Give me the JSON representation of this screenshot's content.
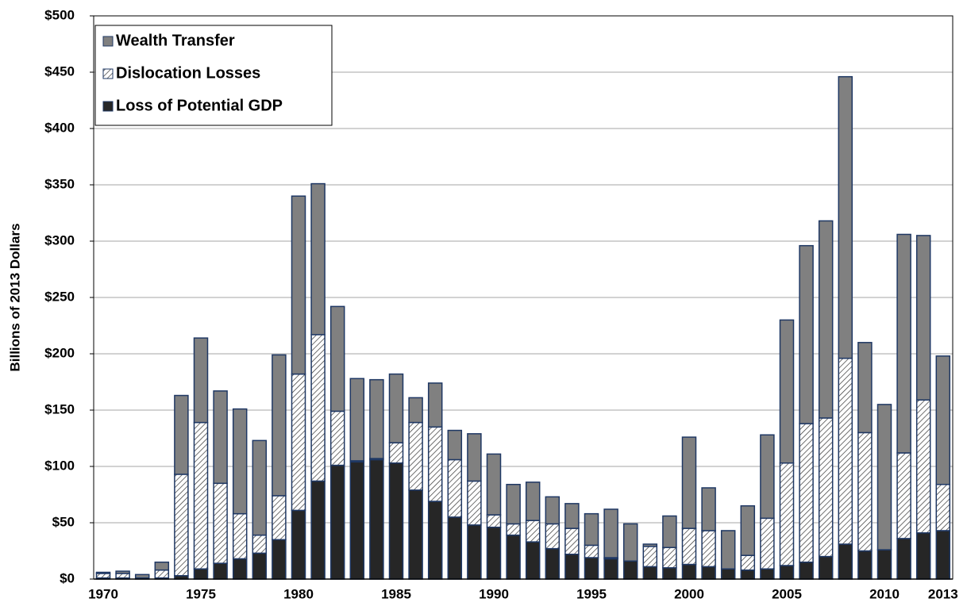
{
  "chart_data": {
    "type": "bar",
    "stacked": true,
    "y_label": "Billions of 2013 Dollars",
    "categories": [
      "1970",
      null,
      null,
      null,
      null,
      "1975",
      null,
      null,
      null,
      null,
      "1980",
      null,
      null,
      null,
      null,
      "1985",
      null,
      null,
      null,
      null,
      "1990",
      null,
      null,
      null,
      null,
      "1995",
      null,
      null,
      null,
      null,
      "2000",
      null,
      null,
      null,
      null,
      "2005",
      null,
      null,
      null,
      null,
      "2010",
      null,
      null,
      "2013"
    ],
    "series": [
      {
        "name": "Loss of Potential GDP",
        "color": "#262626",
        "values": [
          1,
          1,
          0,
          1,
          3,
          9,
          14,
          18,
          23,
          35,
          61,
          87,
          101,
          104,
          106,
          103,
          79,
          69,
          55,
          48,
          46,
          39,
          33,
          27,
          22,
          19,
          18,
          16,
          11,
          10,
          13,
          11,
          9,
          8,
          9,
          12,
          15,
          20,
          31,
          25,
          26,
          36,
          41,
          43
        ]
      },
      {
        "name": "Dislocation Losses",
        "color": "#ffffff",
        "hatch": true,
        "values": [
          4,
          4,
          1,
          7,
          90,
          130,
          71,
          40,
          16,
          39,
          121,
          130,
          48,
          1,
          1,
          18,
          60,
          66,
          51,
          39,
          11,
          10,
          19,
          22,
          23,
          11,
          1,
          0,
          18,
          18,
          32,
          32,
          0,
          13,
          45,
          91,
          123,
          123,
          165,
          105,
          0,
          76,
          118,
          41
        ]
      },
      {
        "name": "Wealth Transfer",
        "color": "#808080",
        "values": [
          1,
          2,
          3,
          7,
          70,
          75,
          82,
          93,
          84,
          125,
          158,
          134,
          93,
          73,
          70,
          61,
          22,
          39,
          26,
          42,
          54,
          35,
          34,
          24,
          22,
          28,
          43,
          33,
          2,
          28,
          81,
          38,
          34,
          44,
          74,
          127,
          158,
          175,
          250,
          80,
          129,
          194,
          146,
          114
        ]
      }
    ],
    "ylim": [
      0,
      500
    ],
    "yticks": [
      {
        "value": 0,
        "label": "$0"
      },
      {
        "value": 50,
        "label": "$50"
      },
      {
        "value": 100,
        "label": "$100"
      },
      {
        "value": 150,
        "label": "$150"
      },
      {
        "value": 200,
        "label": "$200"
      },
      {
        "value": 250,
        "label": "$250"
      },
      {
        "value": 300,
        "label": "$300"
      },
      {
        "value": 350,
        "label": "$350"
      },
      {
        "value": 400,
        "label": "$400"
      },
      {
        "value": 450,
        "label": "$450"
      },
      {
        "value": 500,
        "label": "$500"
      }
    ],
    "grid": true,
    "legend": "upper left"
  }
}
